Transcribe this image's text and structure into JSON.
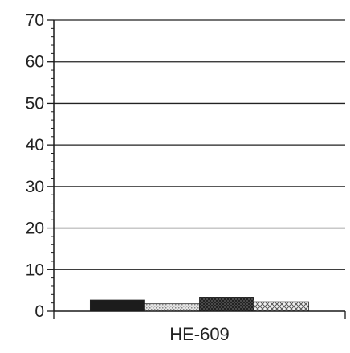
{
  "chart_data": {
    "type": "bar",
    "categories": [
      "HE-609"
    ],
    "series": [
      {
        "values": [
          2.7
        ],
        "pattern": "solid-dark"
      },
      {
        "values": [
          1.8
        ],
        "pattern": "light-stipple"
      },
      {
        "values": [
          3.4
        ],
        "pattern": "dark-crosshatch"
      },
      {
        "values": [
          2.3
        ],
        "pattern": "diamond-lattice"
      }
    ],
    "ylim": [
      0,
      70
    ],
    "yticks": [
      "0",
      "10",
      "20",
      "30",
      "40",
      "50",
      "60",
      "70"
    ],
    "ytick_values": [
      0,
      10,
      20,
      30,
      40,
      50,
      60,
      70
    ],
    "grid": true,
    "legend": false,
    "colors": {
      "axis": "#1a1a1a",
      "grid": "#222222",
      "bar_dark": "#1c1c1c"
    }
  }
}
